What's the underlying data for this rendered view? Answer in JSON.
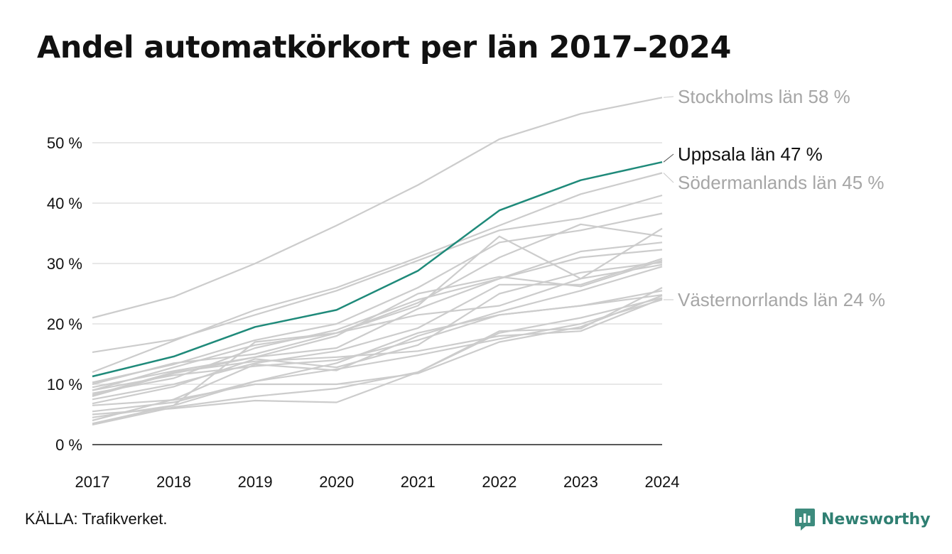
{
  "title": "Andel automatkörkort per län 2017–2024",
  "source": "KÄLLA: Trafikverket.",
  "brand": {
    "name": "Newsworthy",
    "icon": "newsworthy-logo-icon",
    "color": "#2f7f72"
  },
  "colors": {
    "highlight": "#1f8a7a",
    "muted": "#cccccc",
    "grid": "#e0e0e0",
    "axis": "#222222",
    "muted_label": "#a6a6a6",
    "highlight_label": "#111111"
  },
  "chart_data": {
    "type": "line",
    "title": "Andel automatkörkort per län 2017–2024",
    "xlabel": "",
    "ylabel": "",
    "x": [
      2017,
      2018,
      2019,
      2020,
      2021,
      2022,
      2023,
      2024
    ],
    "x_tick_labels": [
      "2017",
      "2018",
      "2019",
      "2020",
      "2021",
      "2022",
      "2023",
      "2024"
    ],
    "y_ticks": [
      0,
      10,
      20,
      30,
      40,
      50
    ],
    "y_tick_labels": [
      "0 %",
      "10 %",
      "20 %",
      "30 %",
      "40 %",
      "50 %"
    ],
    "ylim": [
      0,
      58
    ],
    "grid": true,
    "legend": "none",
    "direct_labels": [
      {
        "series": 0,
        "text": "Stockholms län 58 %",
        "y": 58
      },
      {
        "series": 1,
        "text": "Uppsala län 47 %",
        "y": 47
      },
      {
        "series": 2,
        "text": "Södermanlands län 45 %",
        "y": 45
      },
      {
        "series": 3,
        "text": "Västernorrlands län 24 %",
        "y": 24
      }
    ],
    "series": [
      {
        "values": [
          21,
          24.5,
          30,
          36.3,
          43,
          50.6,
          54.8,
          57.5
        ],
        "highlight": false
      },
      {
        "values": [
          11.3,
          14.6,
          19.5,
          22.3,
          28.8,
          38.8,
          43.8,
          46.8
        ],
        "highlight": true
      },
      {
        "values": [
          12,
          17.2,
          22.3,
          26,
          31,
          36.3,
          41.5,
          45
        ],
        "highlight": false
      },
      {
        "values": [
          5.5,
          7,
          10.5,
          12.5,
          14.8,
          17.5,
          20,
          24
        ],
        "highlight": false
      },
      {
        "values": [
          15.3,
          17.4,
          21.5,
          25.5,
          30.5,
          35.5,
          37.5,
          41.3
        ],
        "highlight": false
      },
      {
        "values": [
          10.3,
          13.3,
          17.3,
          20,
          26,
          33.5,
          35.5,
          38.3
        ],
        "highlight": false
      },
      {
        "values": [
          9,
          12.8,
          16.5,
          18.5,
          23,
          34.5,
          27.5,
          35.8
        ],
        "highlight": false
      },
      {
        "values": [
          10,
          13.5,
          15,
          18.5,
          23.5,
          31,
          36.5,
          34.5
        ],
        "highlight": false
      },
      {
        "values": [
          8.5,
          11,
          16,
          19,
          24,
          27.5,
          32,
          33.5
        ],
        "highlight": false
      },
      {
        "values": [
          9.5,
          12.2,
          14.5,
          16,
          22.5,
          27.5,
          31,
          32.3
        ],
        "highlight": false
      },
      {
        "values": [
          8,
          11.8,
          14.5,
          18,
          25,
          27.8,
          26.2,
          30.5
        ],
        "highlight": false
      },
      {
        "values": [
          7.5,
          10,
          13.5,
          15.5,
          19.3,
          26.5,
          26.5,
          30.8
        ],
        "highlight": false
      },
      {
        "values": [
          6.8,
          9.6,
          14.2,
          12.8,
          16.5,
          25,
          28.5,
          30.2
        ],
        "highlight": false
      },
      {
        "values": [
          4.5,
          6.5,
          17,
          18.5,
          21.5,
          23,
          27.5,
          29.8
        ],
        "highlight": false
      },
      {
        "values": [
          4,
          7.5,
          13.3,
          12.3,
          18,
          22,
          25.5,
          29.5
        ],
        "highlight": false
      },
      {
        "values": [
          3.5,
          6.5,
          10.5,
          13.5,
          18.5,
          21.5,
          23,
          25.5
        ],
        "highlight": false
      },
      {
        "values": [
          3.3,
          6.2,
          8,
          9.3,
          12,
          18.5,
          21,
          24.3
        ],
        "highlight": false
      },
      {
        "values": [
          5,
          6,
          7.3,
          7,
          12,
          18.8,
          19.2,
          26
        ],
        "highlight": false
      },
      {
        "values": [
          6.5,
          7.4,
          10,
          10,
          11.8,
          17,
          19.5,
          24.7
        ],
        "highlight": false
      },
      {
        "values": [
          9,
          11.5,
          13,
          14,
          17.3,
          21.5,
          23,
          24.8
        ],
        "highlight": false
      },
      {
        "values": [
          8.2,
          12,
          13.8,
          14.5,
          15.5,
          18,
          18.8,
          24.2
        ],
        "highlight": false
      }
    ]
  }
}
